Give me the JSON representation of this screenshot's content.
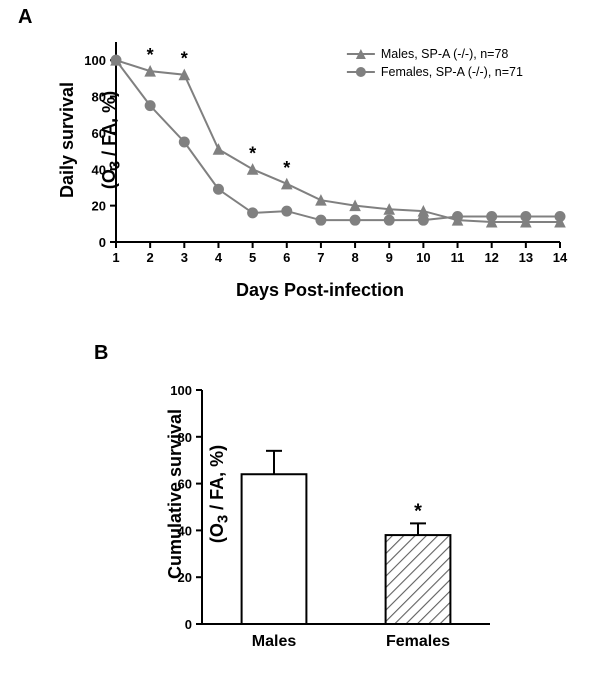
{
  "panelA": {
    "label": "A",
    "chart": {
      "type": "line",
      "xlabel": "Days Post-infection",
      "ylabel_line1": "Daily survival",
      "ylabel_line2": "(O",
      "ylabel_sub": "3",
      "ylabel_line2b": " / FA, %)",
      "xlim": [
        1,
        14
      ],
      "ylim": [
        0,
        110
      ],
      "yticks": [
        0,
        20,
        40,
        60,
        80,
        100
      ],
      "xticks": [
        1,
        2,
        3,
        4,
        5,
        6,
        7,
        8,
        9,
        10,
        11,
        12,
        13,
        14
      ],
      "axis_color": "#000000",
      "line_color": "#808080",
      "line_width": 2,
      "marker_size": 5,
      "series": [
        {
          "name": "Males, SP-A (-/-), n=78",
          "marker": "triangle",
          "x": [
            1,
            2,
            3,
            4,
            5,
            6,
            7,
            8,
            9,
            10,
            11,
            12,
            13,
            14
          ],
          "y": [
            100,
            94,
            92,
            51,
            40,
            32,
            23,
            20,
            18,
            17,
            12,
            11,
            11,
            11
          ]
        },
        {
          "name": "Females, SP-A (-/-), n=71",
          "marker": "circle",
          "x": [
            1,
            2,
            3,
            4,
            5,
            6,
            7,
            8,
            9,
            10,
            11,
            12,
            13,
            14
          ],
          "y": [
            100,
            75,
            55,
            29,
            16,
            17,
            12,
            12,
            12,
            12,
            14,
            14,
            14,
            14
          ]
        }
      ],
      "significance_marks": {
        "symbol": "*",
        "x_positions": [
          2,
          3,
          5,
          6
        ]
      }
    }
  },
  "panelB": {
    "label": "B",
    "chart": {
      "type": "bar",
      "ylabel_line1": "Cumulative survival",
      "ylabel_line2": "(O",
      "ylabel_sub": "3",
      "ylabel_line2b": " / FA, %)",
      "ylim": [
        0,
        100
      ],
      "yticks": [
        0,
        20,
        40,
        60,
        80,
        100
      ],
      "axis_color": "#000000",
      "bar_width_ratio": 0.45,
      "bars": [
        {
          "label": "Males",
          "value": 64,
          "error": 10,
          "fill": "#ffffff",
          "pattern": "none"
        },
        {
          "label": "Females",
          "value": 38,
          "error": 5,
          "fill": "#ffffff",
          "pattern": "diag",
          "sig": "*"
        }
      ],
      "hatch_color": "#606060",
      "error_color": "#000000"
    }
  }
}
